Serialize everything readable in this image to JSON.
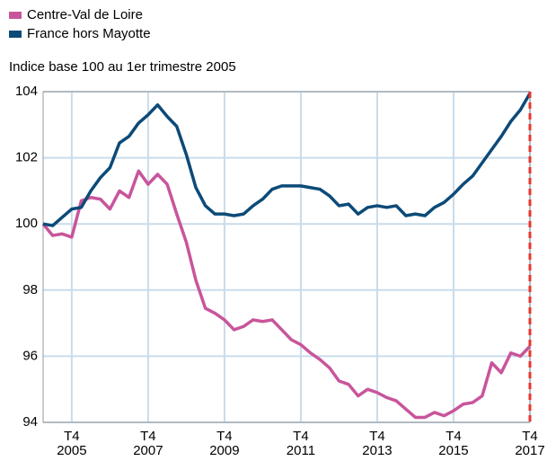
{
  "chart_data": {
    "type": "line",
    "subtitle": "Indice base 100 au 1er trimestre 2005",
    "categories": [
      null,
      null,
      null,
      "T4\n2005",
      null,
      null,
      null,
      null,
      null,
      null,
      null,
      "T4\n2007",
      null,
      null,
      null,
      null,
      null,
      null,
      null,
      "T4\n2009",
      null,
      null,
      null,
      null,
      null,
      null,
      null,
      "T4\n2011",
      null,
      null,
      null,
      null,
      null,
      null,
      null,
      "T4\n2013",
      null,
      null,
      null,
      null,
      null,
      null,
      null,
      "T4\n2015",
      null,
      null,
      null,
      null,
      null,
      null,
      null,
      "T4\n2017"
    ],
    "series": [
      {
        "name": "Centre-Val de Loire",
        "color": "#c8559b",
        "values": [
          100.0,
          99.65,
          99.7,
          99.6,
          100.7,
          100.8,
          100.75,
          100.45,
          101.0,
          100.8,
          101.6,
          101.2,
          101.5,
          101.2,
          100.3,
          99.45,
          98.3,
          97.45,
          97.3,
          97.1,
          96.8,
          96.9,
          97.1,
          97.05,
          97.1,
          96.8,
          96.5,
          96.35,
          96.1,
          95.9,
          95.65,
          95.25,
          95.15,
          94.8,
          95.0,
          94.9,
          94.75,
          94.65,
          94.4,
          94.15,
          94.15,
          94.3,
          94.2,
          94.35,
          94.55,
          94.6,
          94.8,
          95.8,
          95.5,
          96.1,
          96.0,
          96.3
        ]
      },
      {
        "name": "France hors Mayotte",
        "color": "#0c4a78",
        "values": [
          100.0,
          99.95,
          100.2,
          100.45,
          100.5,
          101.0,
          101.4,
          101.7,
          102.45,
          102.65,
          103.05,
          103.3,
          103.6,
          103.25,
          102.95,
          102.1,
          101.1,
          100.55,
          100.3,
          100.3,
          100.25,
          100.3,
          100.55,
          100.75,
          101.05,
          101.15,
          101.15,
          101.15,
          101.1,
          101.05,
          100.85,
          100.55,
          100.6,
          100.3,
          100.5,
          100.55,
          100.5,
          100.55,
          100.25,
          100.3,
          100.25,
          100.5,
          100.65,
          100.9,
          101.2,
          101.45,
          101.85,
          102.25,
          102.65,
          103.1,
          103.45,
          103.95
        ]
      }
    ],
    "ylim": [
      94,
      104
    ],
    "yticks": [
      94,
      96,
      98,
      100,
      102,
      104
    ],
    "grid": true
  }
}
